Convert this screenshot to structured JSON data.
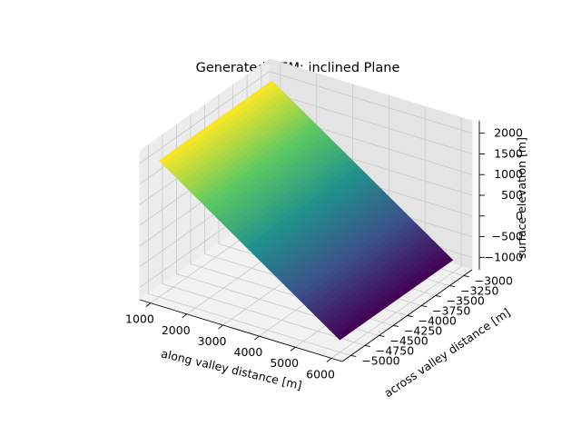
{
  "chart_data": {
    "type": "surface",
    "title": "Generated DEM: inclined Plane",
    "xlabel": "along valley distance [m]",
    "ylabel": "across valley distance [m]",
    "zlabel": "surface elevation [m]",
    "xlim": [
      700,
      6300
    ],
    "ylim": [
      -5150,
      -2850
    ],
    "zlim": [
      -1300,
      2300
    ],
    "x_ticks": [
      "1000",
      "2000",
      "3000",
      "4000",
      "5000",
      "6000"
    ],
    "y_ticks": [
      "−5000",
      "−4750",
      "−4500",
      "−4250",
      "−4000",
      "−3750",
      "−3500",
      "−3250",
      "−3000"
    ],
    "z_ticks": [
      "−1000",
      "−500",
      "0",
      "500",
      "1000",
      "1500",
      "2000"
    ],
    "surface": {
      "shape": "inclined plane",
      "x_range": [
        1000,
        6000
      ],
      "y_range": [
        -5000,
        -3000
      ],
      "z_at_x_min": 2000,
      "z_at_x_max": -1000,
      "colormap": "viridis",
      "colormap_stops": [
        "#440154",
        "#3b528b",
        "#21918c",
        "#5ec962",
        "#fde725"
      ]
    },
    "grid": true,
    "legend": "none"
  }
}
